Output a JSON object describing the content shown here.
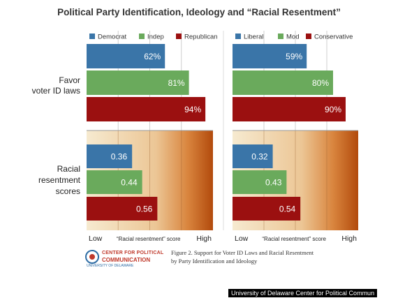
{
  "title": "Political Party Identification, Ideology and “Racial Resentment”",
  "logo": {
    "line1": "CENTER FOR POLITICAL",
    "line2": "COMMUNICATION",
    "small": "UNIVERSITY OF DELAWARE"
  },
  "caption": {
    "line1": "Figure 2. Support for Voter ID Laws and Racial Resentment",
    "line2": "by Party Identification and Ideology"
  },
  "credit": "University of Delaware Center for Political Commun",
  "colors": {
    "blue": "#3a75a8",
    "green": "#6aaa5c",
    "red": "#9b1010",
    "beige": "#f6ead0",
    "orange_dark": "#b24a0c"
  },
  "chart_data": [
    {
      "type": "bar",
      "orientation": "horizontal",
      "panel": "party",
      "legend": [
        "Democrat",
        "Indep",
        "Republican"
      ],
      "legend_placement": "top",
      "row_labels": [
        [
          "Favor",
          "voter ID laws"
        ],
        [
          "Racial",
          "resentment",
          "scores"
        ]
      ],
      "x_axis_labels": {
        "low": "Low",
        "mid": "“Racial resentment” score",
        "high": "High"
      },
      "voter_id": {
        "values": [
          62,
          81,
          94
        ],
        "labels": [
          "62%",
          "81%",
          "94%"
        ],
        "unit": "%",
        "xlim": [
          0,
          100
        ]
      },
      "resentment": {
        "values": [
          0.36,
          0.44,
          0.56
        ],
        "labels": [
          "0.36",
          "0.44",
          "0.56"
        ],
        "xlim": [
          0,
          1
        ]
      }
    },
    {
      "type": "bar",
      "orientation": "horizontal",
      "panel": "ideology",
      "legend": [
        "Liberal",
        "Mod",
        "Conservative"
      ],
      "legend_placement": "top",
      "x_axis_labels": {
        "low": "Low",
        "mid": "“Racial resentment” score",
        "high": "High"
      },
      "voter_id": {
        "values": [
          59,
          80,
          90
        ],
        "labels": [
          "59%",
          "80%",
          "90%"
        ],
        "unit": "%",
        "xlim": [
          0,
          100
        ]
      },
      "resentment": {
        "values": [
          0.32,
          0.43,
          0.54
        ],
        "labels": [
          "0.32",
          "0.43",
          "0.54"
        ],
        "xlim": [
          0,
          1
        ]
      }
    }
  ]
}
